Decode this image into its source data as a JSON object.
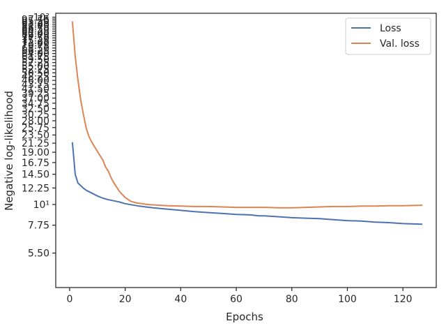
{
  "chart_data": {
    "type": "line",
    "xlabel": "Epochs",
    "ylabel": "Negative log-likelihood",
    "xlim": [
      -5,
      132
    ],
    "ylim": [
      3.6,
      105
    ],
    "yscale": "log",
    "x_ticks": [
      0,
      20,
      40,
      60,
      80,
      100,
      120
    ],
    "y_ticks": [
      5.5,
      7.75,
      10,
      12.25,
      14.5,
      16.75,
      19,
      21.25,
      23.5,
      25.75,
      28,
      30.25,
      32.5,
      34.75,
      37,
      39.25,
      41.5,
      43.75,
      46,
      48.25,
      50.5,
      52.75,
      55,
      57.25,
      59.5,
      61.75,
      64,
      66.25,
      68.5,
      70.75,
      73,
      75.25,
      77.5,
      79.75,
      82,
      84.25,
      86.5,
      88.75,
      91,
      93.25,
      95.5,
      97.75,
      100
    ],
    "y_tick_labels": [
      "5.50",
      "7.75",
      "10¹",
      "12.25",
      "14.50",
      "16.75",
      "19.00",
      "21.25",
      "23.50",
      "25.75",
      "28.00",
      "30.25",
      "32.50",
      "34.75",
      "37.00",
      "39.25",
      "41.50",
      "43.75",
      "46.00",
      "48.25",
      "50.50",
      "52.75",
      "55.00",
      "57.25",
      "59.50",
      "61.75",
      "64.00",
      "66.25",
      "68.50",
      "70.75",
      "73.00",
      "75.25",
      "77.50",
      "79.75",
      "82.00",
      "84.25",
      "86.50",
      "88.75",
      "91.00",
      "93.25",
      "95.50",
      "97.75",
      "10²"
    ],
    "grid": false,
    "legend_position": "top-right",
    "series": [
      {
        "name": "Loss",
        "color": "#4c72b0",
        "x": [
          1,
          2,
          3,
          4,
          5,
          6,
          7,
          8,
          10,
          12,
          14,
          16,
          18,
          20,
          25,
          30,
          35,
          40,
          45,
          50,
          55,
          60,
          65,
          68,
          70,
          75,
          80,
          85,
          90,
          95,
          100,
          105,
          110,
          115,
          120,
          127
        ],
        "y": [
          21.5,
          14.5,
          13.0,
          12.6,
          12.2,
          11.9,
          11.7,
          11.5,
          11.1,
          10.8,
          10.6,
          10.45,
          10.3,
          10.1,
          9.8,
          9.6,
          9.45,
          9.3,
          9.15,
          9.05,
          8.95,
          8.85,
          8.8,
          8.7,
          8.7,
          8.6,
          8.5,
          8.45,
          8.4,
          8.3,
          8.2,
          8.15,
          8.05,
          8.0,
          7.9,
          7.85
        ]
      },
      {
        "name": "Val. loss",
        "color": "#dd8452",
        "x": [
          1,
          2,
          3,
          4,
          5,
          6,
          7,
          8,
          10,
          12,
          13,
          14,
          15,
          16,
          18,
          20,
          22,
          24,
          26,
          28,
          30,
          35,
          40,
          45,
          50,
          55,
          60,
          65,
          70,
          75,
          80,
          85,
          90,
          95,
          100,
          105,
          110,
          115,
          120,
          127
        ],
        "y": [
          95,
          62,
          46,
          36,
          30,
          25.5,
          23,
          21.5,
          19.2,
          17.2,
          15.8,
          15.0,
          13.8,
          13.0,
          11.7,
          10.9,
          10.4,
          10.2,
          10.1,
          10.0,
          9.95,
          9.85,
          9.8,
          9.75,
          9.75,
          9.7,
          9.65,
          9.65,
          9.65,
          9.6,
          9.6,
          9.65,
          9.7,
          9.75,
          9.75,
          9.8,
          9.8,
          9.85,
          9.85,
          9.9
        ]
      }
    ]
  }
}
